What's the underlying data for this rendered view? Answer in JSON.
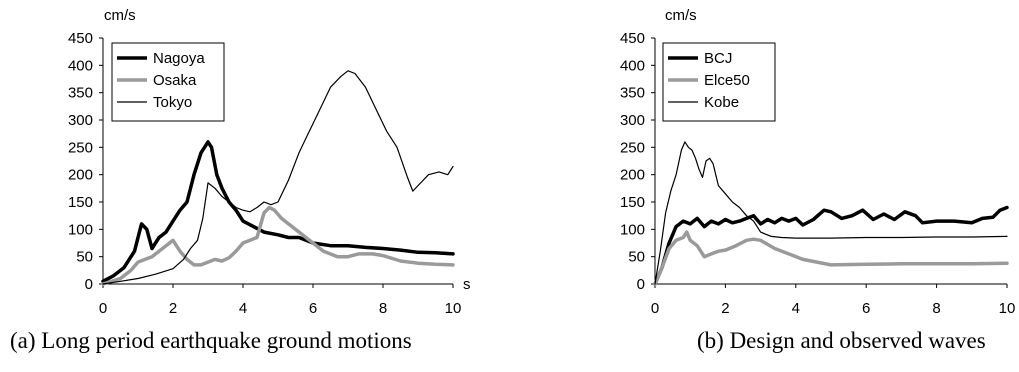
{
  "captions": {
    "a": "(a) Long period earthquake ground motions",
    "b": "(b) Design and observed waves"
  },
  "chart_data": [
    {
      "type": "line",
      "caption": "(a) Long period earthquake ground motions",
      "ylabel": "cm/s",
      "xlabel": "s",
      "xlim": [
        0,
        10
      ],
      "ylim": [
        0,
        450
      ],
      "xticks": [
        0,
        2,
        4,
        6,
        8,
        10
      ],
      "yticks": [
        0,
        50,
        100,
        150,
        200,
        250,
        300,
        350,
        400,
        450
      ],
      "grid": false,
      "legend": "top-left",
      "series": [
        {
          "name": "Nagoya",
          "color": "#000000",
          "stroke": "thick",
          "points": [
            [
              0,
              5
            ],
            [
              0.3,
              15
            ],
            [
              0.6,
              30
            ],
            [
              0.9,
              60
            ],
            [
              1.1,
              110
            ],
            [
              1.25,
              100
            ],
            [
              1.4,
              65
            ],
            [
              1.6,
              85
            ],
            [
              1.8,
              95
            ],
            [
              2.0,
              115
            ],
            [
              2.2,
              135
            ],
            [
              2.4,
              150
            ],
            [
              2.6,
              200
            ],
            [
              2.8,
              240
            ],
            [
              3.0,
              260
            ],
            [
              3.1,
              250
            ],
            [
              3.25,
              200
            ],
            [
              3.4,
              175
            ],
            [
              3.6,
              150
            ],
            [
              3.8,
              135
            ],
            [
              4.0,
              115
            ],
            [
              4.3,
              105
            ],
            [
              4.6,
              95
            ],
            [
              5.0,
              90
            ],
            [
              5.3,
              85
            ],
            [
              5.6,
              85
            ],
            [
              6.0,
              75
            ],
            [
              6.5,
              70
            ],
            [
              7.0,
              70
            ],
            [
              7.5,
              67
            ],
            [
              8.0,
              65
            ],
            [
              8.5,
              62
            ],
            [
              9.0,
              58
            ],
            [
              9.5,
              57
            ],
            [
              10,
              55
            ]
          ]
        },
        {
          "name": "Osaka",
          "color": "#9a9a9a",
          "stroke": "thick",
          "points": [
            [
              0,
              0
            ],
            [
              0.5,
              10
            ],
            [
              0.8,
              25
            ],
            [
              1.0,
              40
            ],
            [
              1.2,
              45
            ],
            [
              1.4,
              50
            ],
            [
              1.6,
              60
            ],
            [
              1.8,
              70
            ],
            [
              2.0,
              80
            ],
            [
              2.2,
              60
            ],
            [
              2.4,
              45
            ],
            [
              2.6,
              35
            ],
            [
              2.8,
              35
            ],
            [
              3.0,
              40
            ],
            [
              3.2,
              45
            ],
            [
              3.4,
              42
            ],
            [
              3.6,
              48
            ],
            [
              3.8,
              60
            ],
            [
              4.0,
              75
            ],
            [
              4.2,
              80
            ],
            [
              4.4,
              85
            ],
            [
              4.6,
              130
            ],
            [
              4.75,
              140
            ],
            [
              4.9,
              135
            ],
            [
              5.1,
              120
            ],
            [
              5.4,
              105
            ],
            [
              5.7,
              90
            ],
            [
              6.0,
              75
            ],
            [
              6.3,
              60
            ],
            [
              6.7,
              50
            ],
            [
              7.0,
              50
            ],
            [
              7.3,
              55
            ],
            [
              7.7,
              55
            ],
            [
              8.0,
              52
            ],
            [
              8.5,
              42
            ],
            [
              9.0,
              38
            ],
            [
              9.5,
              36
            ],
            [
              10,
              35
            ]
          ]
        },
        {
          "name": "Tokyo",
          "color": "#000000",
          "stroke": "thin",
          "points": [
            [
              0,
              0
            ],
            [
              0.5,
              5
            ],
            [
              1.0,
              10
            ],
            [
              1.5,
              18
            ],
            [
              2.0,
              28
            ],
            [
              2.3,
              45
            ],
            [
              2.5,
              65
            ],
            [
              2.7,
              80
            ],
            [
              2.85,
              120
            ],
            [
              3.0,
              185
            ],
            [
              3.2,
              175
            ],
            [
              3.4,
              160
            ],
            [
              3.6,
              150
            ],
            [
              3.8,
              140
            ],
            [
              4.0,
              135
            ],
            [
              4.2,
              132
            ],
            [
              4.4,
              140
            ],
            [
              4.6,
              150
            ],
            [
              4.8,
              145
            ],
            [
              5.0,
              150
            ],
            [
              5.3,
              190
            ],
            [
              5.6,
              240
            ],
            [
              5.9,
              280
            ],
            [
              6.2,
              320
            ],
            [
              6.5,
              360
            ],
            [
              6.8,
              380
            ],
            [
              7.0,
              390
            ],
            [
              7.2,
              385
            ],
            [
              7.5,
              360
            ],
            [
              7.8,
              320
            ],
            [
              8.1,
              280
            ],
            [
              8.4,
              250
            ],
            [
              8.7,
              195
            ],
            [
              8.85,
              170
            ],
            [
              9.0,
              180
            ],
            [
              9.3,
              200
            ],
            [
              9.6,
              205
            ],
            [
              9.85,
              200
            ],
            [
              10,
              215
            ]
          ]
        }
      ]
    },
    {
      "type": "line",
      "caption": "(b) Design and observed waves",
      "ylabel": "cm/s",
      "xlim": [
        0,
        10
      ],
      "ylim": [
        0,
        450
      ],
      "xticks": [
        0,
        2,
        4,
        6,
        8,
        10
      ],
      "yticks": [
        0,
        50,
        100,
        150,
        200,
        250,
        300,
        350,
        400,
        450
      ],
      "grid": false,
      "legend": "top-left",
      "series": [
        {
          "name": "BCJ",
          "color": "#000000",
          "stroke": "thick",
          "points": [
            [
              0,
              0
            ],
            [
              0.2,
              30
            ],
            [
              0.4,
              75
            ],
            [
              0.6,
              105
            ],
            [
              0.8,
              115
            ],
            [
              1.0,
              110
            ],
            [
              1.2,
              120
            ],
            [
              1.4,
              105
            ],
            [
              1.6,
              115
            ],
            [
              1.8,
              110
            ],
            [
              2.0,
              118
            ],
            [
              2.2,
              112
            ],
            [
              2.4,
              115
            ],
            [
              2.6,
              120
            ],
            [
              2.8,
              125
            ],
            [
              3.0,
              110
            ],
            [
              3.2,
              118
            ],
            [
              3.4,
              112
            ],
            [
              3.6,
              120
            ],
            [
              3.8,
              115
            ],
            [
              4.0,
              120
            ],
            [
              4.2,
              108
            ],
            [
              4.5,
              118
            ],
            [
              4.8,
              135
            ],
            [
              5.0,
              132
            ],
            [
              5.3,
              120
            ],
            [
              5.6,
              125
            ],
            [
              5.9,
              135
            ],
            [
              6.2,
              118
            ],
            [
              6.5,
              128
            ],
            [
              6.8,
              118
            ],
            [
              7.1,
              132
            ],
            [
              7.4,
              125
            ],
            [
              7.6,
              112
            ],
            [
              8.0,
              115
            ],
            [
              8.5,
              115
            ],
            [
              9.0,
              112
            ],
            [
              9.3,
              120
            ],
            [
              9.6,
              122
            ],
            [
              9.8,
              135
            ],
            [
              10,
              140
            ]
          ]
        },
        {
          "name": "Elce50",
          "color": "#9a9a9a",
          "stroke": "thick",
          "points": [
            [
              0,
              0
            ],
            [
              0.2,
              30
            ],
            [
              0.4,
              65
            ],
            [
              0.6,
              80
            ],
            [
              0.8,
              85
            ],
            [
              0.9,
              95
            ],
            [
              1.0,
              80
            ],
            [
              1.2,
              70
            ],
            [
              1.4,
              50
            ],
            [
              1.6,
              55
            ],
            [
              1.8,
              60
            ],
            [
              2.0,
              62
            ],
            [
              2.3,
              70
            ],
            [
              2.6,
              80
            ],
            [
              2.8,
              82
            ],
            [
              3.0,
              80
            ],
            [
              3.4,
              65
            ],
            [
              3.8,
              55
            ],
            [
              4.2,
              45
            ],
            [
              4.6,
              40
            ],
            [
              5.0,
              35
            ],
            [
              6,
              36
            ],
            [
              7,
              37
            ],
            [
              8,
              37
            ],
            [
              9,
              37
            ],
            [
              10,
              38
            ]
          ]
        },
        {
          "name": "Kobe",
          "color": "#000000",
          "stroke": "thin",
          "points": [
            [
              0,
              0
            ],
            [
              0.15,
              60
            ],
            [
              0.3,
              130
            ],
            [
              0.45,
              170
            ],
            [
              0.6,
              200
            ],
            [
              0.75,
              245
            ],
            [
              0.85,
              260
            ],
            [
              0.95,
              250
            ],
            [
              1.05,
              245
            ],
            [
              1.15,
              230
            ],
            [
              1.25,
              210
            ],
            [
              1.35,
              195
            ],
            [
              1.45,
              225
            ],
            [
              1.55,
              230
            ],
            [
              1.65,
              220
            ],
            [
              1.8,
              180
            ],
            [
              2.0,
              165
            ],
            [
              2.2,
              150
            ],
            [
              2.4,
              140
            ],
            [
              2.6,
              125
            ],
            [
              2.8,
              115
            ],
            [
              3.0,
              95
            ],
            [
              3.3,
              87
            ],
            [
              3.6,
              85
            ],
            [
              4,
              84
            ],
            [
              5,
              84
            ],
            [
              6,
              85
            ],
            [
              7,
              85
            ],
            [
              8,
              86
            ],
            [
              9,
              86
            ],
            [
              10,
              87
            ]
          ]
        }
      ]
    }
  ]
}
